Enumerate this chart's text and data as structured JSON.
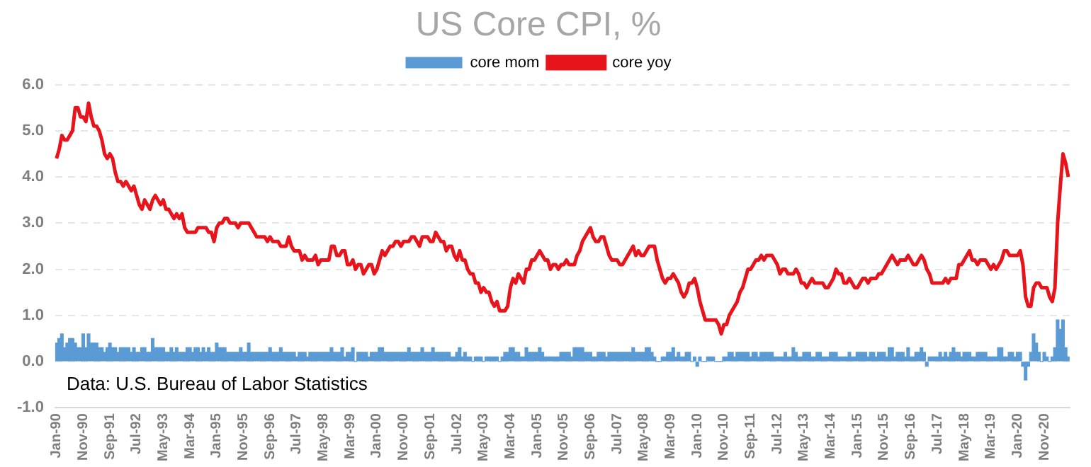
{
  "chart_data": {
    "type": "bar",
    "title": "US Core CPI, %",
    "legend": "top",
    "grid": "y",
    "ylim": [
      -1,
      6
    ],
    "yticks": [
      {
        "value": -1,
        "label": "-1.0"
      },
      {
        "value": 0,
        "label": "0.0"
      },
      {
        "value": 1,
        "label": "1.0"
      },
      {
        "value": 2,
        "label": "2.0"
      },
      {
        "value": 3,
        "label": "3.0"
      },
      {
        "value": 4,
        "label": "4.0"
      },
      {
        "value": 5,
        "label": "5.0"
      },
      {
        "value": 6,
        "label": "6.0"
      }
    ],
    "annotations": [
      "Data: U.S. Bureau of Labor Statistics"
    ],
    "categories": [
      "Jan-90",
      null,
      null,
      null,
      null,
      null,
      null,
      null,
      null,
      null,
      "Nov-90",
      null,
      null,
      null,
      null,
      null,
      null,
      null,
      null,
      null,
      "Sep-91",
      null,
      null,
      null,
      null,
      null,
      null,
      null,
      null,
      null,
      "Jul-92",
      null,
      null,
      null,
      null,
      null,
      null,
      null,
      null,
      null,
      "May-93",
      null,
      null,
      null,
      null,
      null,
      null,
      null,
      null,
      null,
      "Mar-94",
      null,
      null,
      null,
      null,
      null,
      null,
      null,
      null,
      null,
      "Jan-95",
      null,
      null,
      null,
      null,
      null,
      null,
      null,
      null,
      null,
      "Nov-95",
      null,
      null,
      null,
      null,
      null,
      null,
      null,
      null,
      null,
      "Sep-96",
      null,
      null,
      null,
      null,
      null,
      null,
      null,
      null,
      null,
      "Jul-97",
      null,
      null,
      null,
      null,
      null,
      null,
      null,
      null,
      null,
      "May-98",
      null,
      null,
      null,
      null,
      null,
      null,
      null,
      null,
      null,
      "Mar-99",
      null,
      null,
      null,
      null,
      null,
      null,
      null,
      null,
      null,
      "Jan-00",
      null,
      null,
      null,
      null,
      null,
      null,
      null,
      null,
      null,
      "Nov-00",
      null,
      null,
      null,
      null,
      null,
      null,
      null,
      null,
      null,
      "Sep-01",
      null,
      null,
      null,
      null,
      null,
      null,
      null,
      null,
      null,
      "Jul-02",
      null,
      null,
      null,
      null,
      null,
      null,
      null,
      null,
      null,
      "May-03",
      null,
      null,
      null,
      null,
      null,
      null,
      null,
      null,
      null,
      "Mar-04",
      null,
      null,
      null,
      null,
      null,
      null,
      null,
      null,
      null,
      "Jan-05",
      null,
      null,
      null,
      null,
      null,
      null,
      null,
      null,
      null,
      "Nov-05",
      null,
      null,
      null,
      null,
      null,
      null,
      null,
      null,
      null,
      "Sep-06",
      null,
      null,
      null,
      null,
      null,
      null,
      null,
      null,
      null,
      "Jul-07",
      null,
      null,
      null,
      null,
      null,
      null,
      null,
      null,
      null,
      "May-08",
      null,
      null,
      null,
      null,
      null,
      null,
      null,
      null,
      null,
      "Mar-09",
      null,
      null,
      null,
      null,
      null,
      null,
      null,
      null,
      null,
      "Jan-10",
      null,
      null,
      null,
      null,
      null,
      null,
      null,
      null,
      null,
      "Nov-10",
      null,
      null,
      null,
      null,
      null,
      null,
      null,
      null,
      null,
      "Sep-11",
      null,
      null,
      null,
      null,
      null,
      null,
      null,
      null,
      null,
      "Jul-12",
      null,
      null,
      null,
      null,
      null,
      null,
      null,
      null,
      null,
      "May-13",
      null,
      null,
      null,
      null,
      null,
      null,
      null,
      null,
      null,
      "Mar-14",
      null,
      null,
      null,
      null,
      null,
      null,
      null,
      null,
      null,
      "Jan-15",
      null,
      null,
      null,
      null,
      null,
      null,
      null,
      null,
      null,
      "Nov-15",
      null,
      null,
      null,
      null,
      null,
      null,
      null,
      null,
      null,
      "Sep-16",
      null,
      null,
      null,
      null,
      null,
      null,
      null,
      null,
      null,
      "Jul-17",
      null,
      null,
      null,
      null,
      null,
      null,
      null,
      null,
      null,
      "May-18",
      null,
      null,
      null,
      null,
      null,
      null,
      null,
      null,
      null,
      "Mar-19",
      null,
      null,
      null,
      null,
      null,
      null,
      null,
      null,
      null,
      "Jan-20",
      null,
      null,
      null,
      null,
      null,
      null,
      null,
      null,
      null,
      "Nov-20",
      null,
      null,
      null,
      null,
      null,
      null,
      null,
      null,
      null
    ],
    "series": [
      {
        "name": "core mom",
        "color": "#5b9bd5",
        "values": [
          0.4,
          0.5,
          0.6,
          0.3,
          0.4,
          0.5,
          0.5,
          0.4,
          0.3,
          0.3,
          0.6,
          0.3,
          0.6,
          0.4,
          0.4,
          0.4,
          0.3,
          0.3,
          0.2,
          0.3,
          0.4,
          0.3,
          0.3,
          0.2,
          0.3,
          0.3,
          0.3,
          0.3,
          0.2,
          0.3,
          0.2,
          0.2,
          0.3,
          0.3,
          0.2,
          0.2,
          0.5,
          0.3,
          0.3,
          0.3,
          0.3,
          0.2,
          0.2,
          0.3,
          0.2,
          0.3,
          0.2,
          0.2,
          0.2,
          0.3,
          0.3,
          0.2,
          0.3,
          0.3,
          0.2,
          0.3,
          0.2,
          0.3,
          0.2,
          0.2,
          0.4,
          0.3,
          0.3,
          0.3,
          0.2,
          0.2,
          0.2,
          0.2,
          0.2,
          0.3,
          0.2,
          0.2,
          0.4,
          0.2,
          0.2,
          0.2,
          0.2,
          0.2,
          0.2,
          0.2,
          0.3,
          0.2,
          0.2,
          0.2,
          0.3,
          0.2,
          0.2,
          0.2,
          0.2,
          0.2,
          0.1,
          0.2,
          0.2,
          0.2,
          0.1,
          0.2,
          0.2,
          0.2,
          0.2,
          0.2,
          0.2,
          0.2,
          0.2,
          0.3,
          0.2,
          0.2,
          0.2,
          0.3,
          0.1,
          0.2,
          0.2,
          0.3,
          0.0,
          0.2,
          0.2,
          0.2,
          0.2,
          0.1,
          0.2,
          0.2,
          0.2,
          0.3,
          0.3,
          0.2,
          0.2,
          0.2,
          0.2,
          0.2,
          0.2,
          0.2,
          0.2,
          0.2,
          0.3,
          0.2,
          0.2,
          0.2,
          0.2,
          0.3,
          0.2,
          0.2,
          0.2,
          0.3,
          0.2,
          0.2,
          0.2,
          0.2,
          0.2,
          0.2,
          0.1,
          0.1,
          0.2,
          0.3,
          0.1,
          0.2,
          0.1,
          0.1,
          0.0,
          0.1,
          0.1,
          0.1,
          0.0,
          0.1,
          0.1,
          0.1,
          0.1,
          0.1,
          0.0,
          0.1,
          0.2,
          0.2,
          0.3,
          0.3,
          0.2,
          0.2,
          0.1,
          0.1,
          0.3,
          0.2,
          0.2,
          0.2,
          0.2,
          0.3,
          0.2,
          0.1,
          0.1,
          0.1,
          0.1,
          0.1,
          0.1,
          0.2,
          0.2,
          0.2,
          0.2,
          0.1,
          0.3,
          0.3,
          0.3,
          0.3,
          0.2,
          0.2,
          0.2,
          0.1,
          0.1,
          0.2,
          0.2,
          0.2,
          0.1,
          0.2,
          0.2,
          0.2,
          0.2,
          0.2,
          0.2,
          0.2,
          0.2,
          0.2,
          0.3,
          0.2,
          0.2,
          0.2,
          0.2,
          0.3,
          0.3,
          0.2,
          0.1,
          0.0,
          0.0,
          0.1,
          0.1,
          0.2,
          0.2,
          0.3,
          0.1,
          0.2,
          0.1,
          0.1,
          0.2,
          0.2,
          0.0,
          0.1,
          -0.1,
          0.1,
          0.0,
          0.0,
          0.1,
          0.1,
          0.1,
          0.0,
          0.0,
          0.0,
          0.1,
          0.1,
          0.2,
          0.2,
          0.1,
          0.2,
          0.2,
          0.2,
          0.2,
          0.2,
          0.1,
          0.2,
          0.2,
          0.1,
          0.2,
          0.2,
          0.2,
          0.2,
          0.2,
          0.1,
          0.1,
          0.1,
          0.1,
          0.2,
          0.1,
          0.1,
          0.3,
          0.2,
          0.1,
          0.1,
          0.2,
          0.2,
          0.2,
          0.1,
          0.1,
          0.2,
          0.2,
          0.1,
          0.1,
          0.1,
          0.2,
          0.2,
          0.2,
          0.1,
          0.1,
          0.1,
          0.1,
          0.2,
          0.1,
          0.1,
          0.2,
          0.2,
          0.2,
          0.2,
          0.1,
          0.2,
          0.2,
          0.1,
          0.2,
          0.2,
          0.2,
          0.1,
          0.3,
          0.3,
          0.1,
          0.2,
          0.2,
          0.2,
          0.1,
          0.3,
          0.1,
          0.1,
          0.2,
          0.2,
          0.3,
          0.2,
          -0.1,
          0.1,
          0.1,
          0.1,
          0.1,
          0.2,
          0.1,
          0.2,
          0.1,
          0.2,
          0.3,
          0.2,
          0.2,
          0.1,
          0.2,
          0.2,
          0.2,
          0.1,
          0.1,
          0.2,
          0.2,
          0.2,
          0.2,
          0.1,
          0.1,
          0.1,
          0.1,
          0.3,
          0.3,
          0.1,
          0.1,
          0.2,
          0.2,
          0.1,
          0.2,
          0.2,
          -0.1,
          -0.4,
          -0.1,
          0.2,
          0.6,
          0.4,
          0.2,
          0.0,
          0.2,
          0.1,
          0.0,
          0.1,
          0.3,
          0.9,
          0.7,
          0.9,
          0.3,
          0.1
        ]
      },
      {
        "name": "core yoy",
        "type": "line",
        "color": "#e8141c",
        "values": [
          4.4,
          4.6,
          4.9,
          4.8,
          4.8,
          4.9,
          5.0,
          5.5,
          5.5,
          5.3,
          5.3,
          5.2,
          5.6,
          5.3,
          5.1,
          5.1,
          5.0,
          4.8,
          4.5,
          4.4,
          4.5,
          4.4,
          4.1,
          3.9,
          3.9,
          3.8,
          3.9,
          3.8,
          3.7,
          3.8,
          3.6,
          3.4,
          3.3,
          3.5,
          3.4,
          3.3,
          3.5,
          3.6,
          3.5,
          3.4,
          3.5,
          3.3,
          3.3,
          3.2,
          3.1,
          3.2,
          3.1,
          3.2,
          2.9,
          2.8,
          2.8,
          2.8,
          2.8,
          2.9,
          2.9,
          2.9,
          2.9,
          2.8,
          2.8,
          2.6,
          2.9,
          3.0,
          3.0,
          3.1,
          3.1,
          3.0,
          3.0,
          3.0,
          2.9,
          3.0,
          3.0,
          3.0,
          3.0,
          2.9,
          2.8,
          2.7,
          2.7,
          2.7,
          2.7,
          2.6,
          2.7,
          2.6,
          2.6,
          2.6,
          2.5,
          2.5,
          2.5,
          2.7,
          2.5,
          2.4,
          2.4,
          2.4,
          2.2,
          2.3,
          2.2,
          2.2,
          2.2,
          2.3,
          2.1,
          2.2,
          2.2,
          2.2,
          2.2,
          2.5,
          2.5,
          2.3,
          2.3,
          2.4,
          2.4,
          2.1,
          2.1,
          2.2,
          2.0,
          2.1,
          2.1,
          1.9,
          2.0,
          2.1,
          2.1,
          1.9,
          2.0,
          2.2,
          2.4,
          2.3,
          2.4,
          2.5,
          2.5,
          2.6,
          2.6,
          2.5,
          2.6,
          2.6,
          2.6,
          2.7,
          2.7,
          2.6,
          2.5,
          2.7,
          2.7,
          2.7,
          2.6,
          2.6,
          2.8,
          2.7,
          2.6,
          2.6,
          2.4,
          2.5,
          2.5,
          2.3,
          2.2,
          2.4,
          2.2,
          2.2,
          2.0,
          1.9,
          1.9,
          1.7,
          1.7,
          1.5,
          1.6,
          1.5,
          1.5,
          1.3,
          1.2,
          1.3,
          1.1,
          1.1,
          1.1,
          1.2,
          1.6,
          1.8,
          1.7,
          1.9,
          1.8,
          1.7,
          2.0,
          2.0,
          2.2,
          2.2,
          2.3,
          2.4,
          2.3,
          2.2,
          2.2,
          2.0,
          2.1,
          2.1,
          2.0,
          2.1,
          2.1,
          2.2,
          2.1,
          2.1,
          2.1,
          2.3,
          2.4,
          2.6,
          2.7,
          2.8,
          2.9,
          2.7,
          2.6,
          2.6,
          2.7,
          2.7,
          2.5,
          2.3,
          2.2,
          2.2,
          2.2,
          2.1,
          2.1,
          2.2,
          2.3,
          2.4,
          2.5,
          2.3,
          2.4,
          2.3,
          2.3,
          2.4,
          2.5,
          2.5,
          2.5,
          2.2,
          2.0,
          1.8,
          1.7,
          1.8,
          1.8,
          1.9,
          1.8,
          1.7,
          1.5,
          1.4,
          1.5,
          1.7,
          1.7,
          1.8,
          1.6,
          1.3,
          1.1,
          0.9,
          0.9,
          0.9,
          0.9,
          0.9,
          0.8,
          0.6,
          0.8,
          0.8,
          1.0,
          1.1,
          1.2,
          1.3,
          1.5,
          1.6,
          1.8,
          2.0,
          2.0,
          2.1,
          2.2,
          2.2,
          2.3,
          2.2,
          2.3,
          2.3,
          2.3,
          2.2,
          2.1,
          1.9,
          2.0,
          2.0,
          1.9,
          1.9,
          1.9,
          2.0,
          1.9,
          1.7,
          1.7,
          1.6,
          1.7,
          1.8,
          1.7,
          1.7,
          1.7,
          1.7,
          1.6,
          1.6,
          1.7,
          1.8,
          2.0,
          1.9,
          1.9,
          1.7,
          1.7,
          1.8,
          1.7,
          1.6,
          1.6,
          1.7,
          1.8,
          1.8,
          1.7,
          1.8,
          1.8,
          1.8,
          1.9,
          1.9,
          2.0,
          2.1,
          2.2,
          2.3,
          2.2,
          2.1,
          2.2,
          2.2,
          2.2,
          2.3,
          2.2,
          2.1,
          2.1,
          2.2,
          2.3,
          2.2,
          2.0,
          1.9,
          1.7,
          1.7,
          1.7,
          1.7,
          1.7,
          1.8,
          1.7,
          1.8,
          1.8,
          1.8,
          2.1,
          2.1,
          2.2,
          2.3,
          2.4,
          2.2,
          2.2,
          2.1,
          2.2,
          2.2,
          2.2,
          2.1,
          2.0,
          2.1,
          2.0,
          2.1,
          2.2,
          2.4,
          2.4,
          2.3,
          2.3,
          2.3,
          2.3,
          2.4,
          2.1,
          1.4,
          1.2,
          1.2,
          1.6,
          1.7,
          1.7,
          1.6,
          1.6,
          1.6,
          1.4,
          1.3,
          1.6,
          3.0,
          3.8,
          4.5,
          4.3,
          4.0
        ]
      }
    ]
  }
}
